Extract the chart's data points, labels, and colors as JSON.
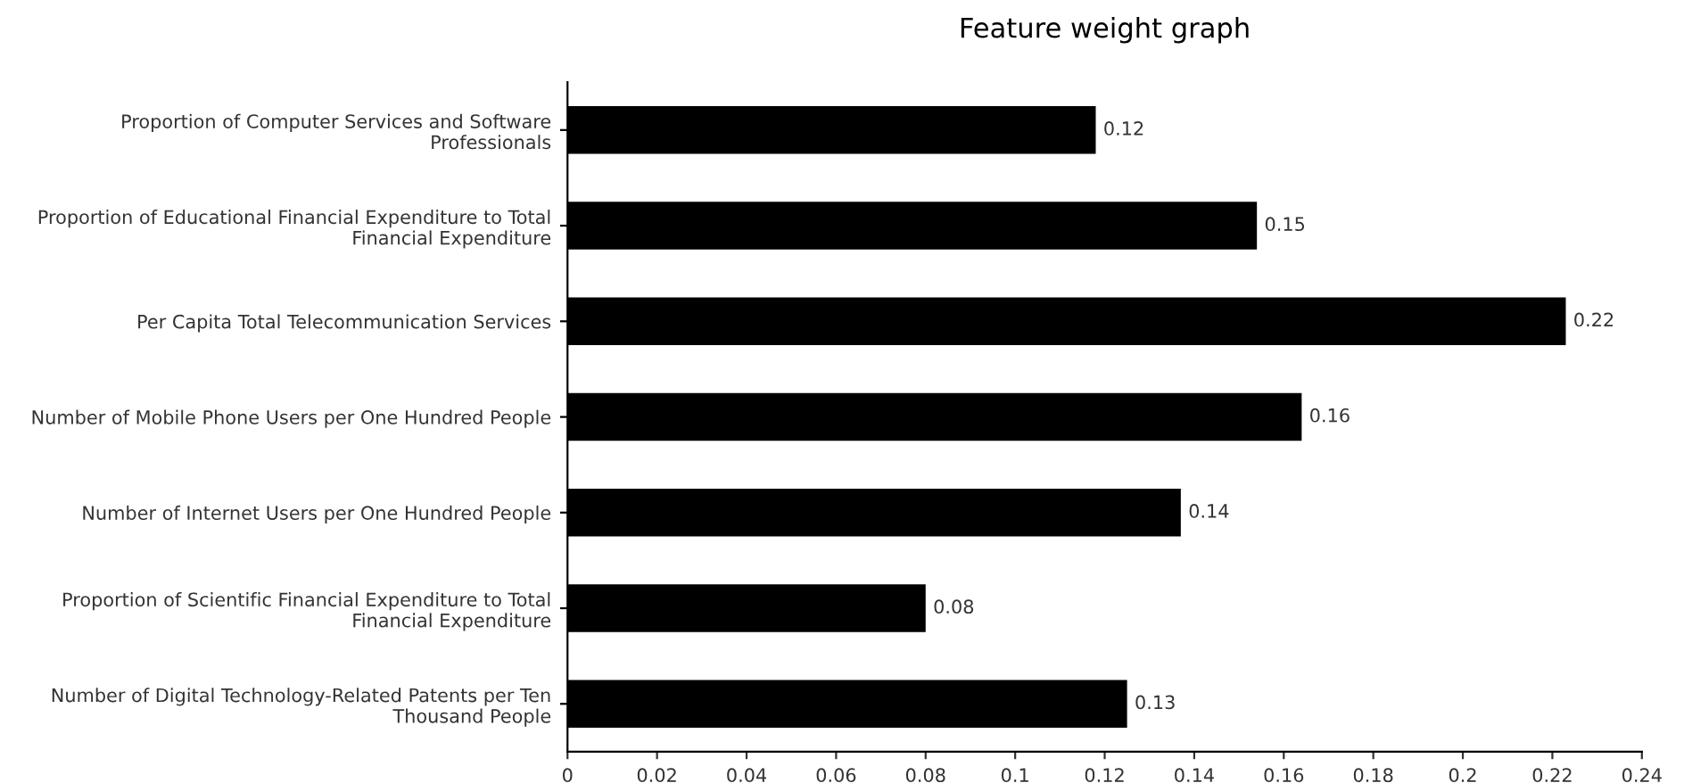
{
  "chart_data": {
    "type": "bar",
    "orientation": "horizontal",
    "title": "Feature weight graph",
    "categories": [
      "Proportion of Computer Services and Software Professionals",
      "Proportion of Educational Financial Expenditure to Total Financial Expenditure",
      "Per Capita Total Telecommunication Services",
      "Number of Mobile Phone Users per One Hundred People",
      "Number of Internet Users per One Hundred People",
      "Proportion of Scientific Financial Expenditure to Total Financial Expenditure",
      "Number of Digital Technology-Related Patents per Ten Thousand People"
    ],
    "values": [
      0.118,
      0.154,
      0.223,
      0.164,
      0.137,
      0.08,
      0.125
    ],
    "value_labels": [
      "0.12",
      "0.15",
      "0.22",
      "0.16",
      "0.14",
      "0.08",
      "0.13"
    ],
    "color": "#000000",
    "xlim": [
      0,
      0.24
    ],
    "xticks": [
      0,
      0.02,
      0.04,
      0.06,
      0.08,
      {
        "value": 0.1,
        "label": "0.1"
      },
      0.12,
      0.14,
      0.16,
      0.18,
      {
        "value": 0.2,
        "label": "0.2"
      },
      0.22,
      0.24
    ],
    "grid": false,
    "legend": false
  }
}
